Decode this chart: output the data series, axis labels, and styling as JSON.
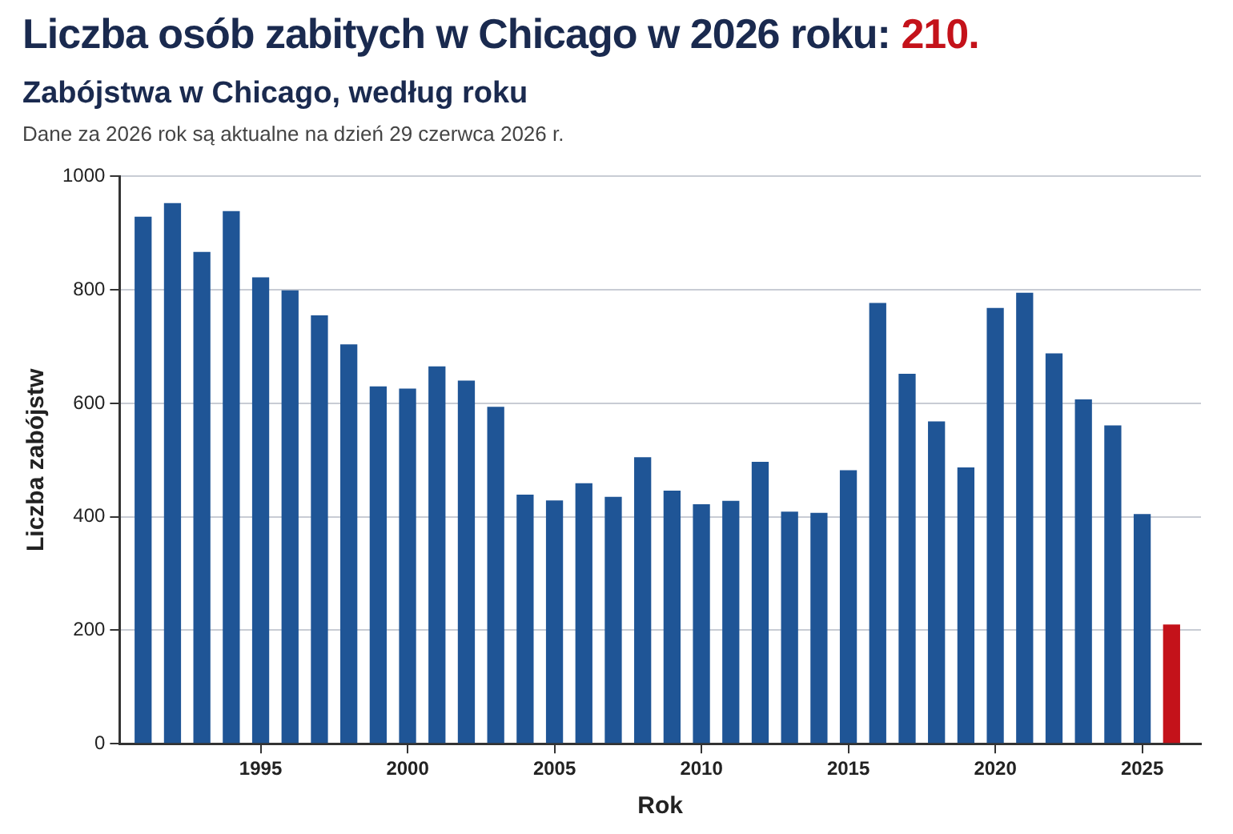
{
  "chart_data": {
    "type": "bar",
    "title": "Liczba osób zabitych w Chicago w 2026 roku: 210.",
    "subtitle": "Zabójstwa w Chicago, według roku",
    "annotations": [
      "Dane za 2026 rok są aktualne na dzień 29 czerwca 2026 r."
    ],
    "xlabel": "Rok",
    "ylabel": "Liczba zabójstw",
    "x": [
      1991,
      1992,
      1993,
      1994,
      1995,
      1996,
      1997,
      1998,
      1999,
      2000,
      2001,
      2002,
      2003,
      2004,
      2005,
      2006,
      2007,
      2008,
      2009,
      2010,
      2011,
      2012,
      2013,
      2014,
      2015,
      2016,
      2017,
      2018,
      2019,
      2020,
      2021,
      2022,
      2023,
      2024,
      2025,
      2026
    ],
    "values": [
      929,
      953,
      867,
      939,
      822,
      799,
      755,
      704,
      630,
      626,
      665,
      640,
      594,
      439,
      429,
      459,
      435,
      505,
      446,
      422,
      428,
      497,
      409,
      407,
      482,
      777,
      652,
      568,
      487,
      768,
      795,
      688,
      607,
      561,
      405,
      210
    ],
    "colors": [
      "#1f5596",
      "#1f5596",
      "#1f5596",
      "#1f5596",
      "#1f5596",
      "#1f5596",
      "#1f5596",
      "#1f5596",
      "#1f5596",
      "#1f5596",
      "#1f5596",
      "#1f5596",
      "#1f5596",
      "#1f5596",
      "#1f5596",
      "#1f5596",
      "#1f5596",
      "#1f5596",
      "#1f5596",
      "#1f5596",
      "#1f5596",
      "#1f5596",
      "#1f5596",
      "#1f5596",
      "#1f5596",
      "#1f5596",
      "#1f5596",
      "#1f5596",
      "#1f5596",
      "#1f5596",
      "#1f5596",
      "#1f5596",
      "#1f5596",
      "#1f5596",
      "#1f5596",
      "#c4121a"
    ],
    "xlim": [
      1990.2,
      2027
    ],
    "xticks": [
      1995,
      2000,
      2005,
      2010,
      2015,
      2020,
      2025
    ],
    "ylim": [
      0,
      1000
    ],
    "yticks": [
      0,
      200,
      400,
      600,
      800,
      1000
    ],
    "grid": "y",
    "legend": false
  }
}
